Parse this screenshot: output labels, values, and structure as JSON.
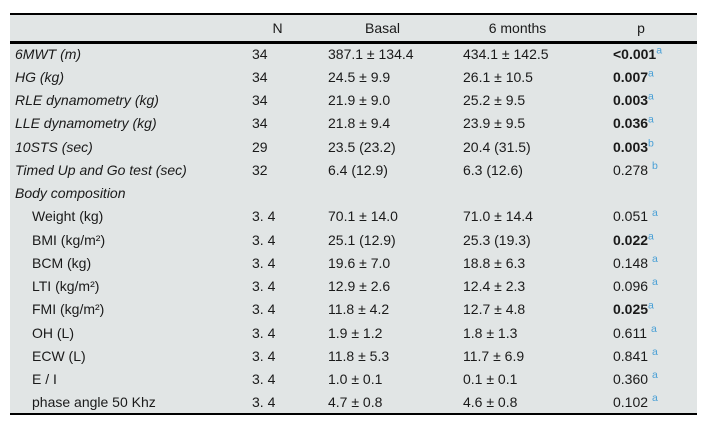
{
  "table": {
    "colors": {
      "background": "#e1e5e5",
      "superscript_blue": "#4aa0d6",
      "text": "#1a1a1a",
      "rule": "#000000"
    },
    "headers": {
      "parameter": "",
      "n": "N",
      "basal": "Basal",
      "six_months": "6 months",
      "p": "p"
    },
    "rows": [
      {
        "label": "6MWT (m)",
        "italic": true,
        "indent": false,
        "n": "34",
        "basal": "387.1 ± 134.4",
        "six_months": "434.1 ± 142.5",
        "p": "<0.001",
        "p_bold": true,
        "sup": "a",
        "sup_gap": false
      },
      {
        "label": "HG (kg)",
        "italic": true,
        "indent": false,
        "n": "34",
        "basal": "24.5 ± 9.9",
        "six_months": "26.1 ± 10.5",
        "p": "0.007",
        "p_bold": true,
        "sup": "a",
        "sup_gap": false
      },
      {
        "label": "RLE dynamometry (kg)",
        "italic": true,
        "indent": false,
        "n": "34",
        "basal": "21.9 ± 9.0",
        "six_months": "25.2 ± 9.5",
        "p": "0.003",
        "p_bold": true,
        "sup": "a",
        "sup_gap": false
      },
      {
        "label": "LLE dynamometry (kg)",
        "italic": true,
        "indent": false,
        "n": "34",
        "basal": "21.8 ± 9.4",
        "six_months": "23.9 ± 9.5",
        "p": "0.036",
        "p_bold": true,
        "sup": "a",
        "sup_gap": false
      },
      {
        "label": "10STS (sec)",
        "italic": true,
        "indent": false,
        "n": "29",
        "basal": "23.5 (23.2)",
        "six_months": "20.4 (31.5)",
        "p": "0.003",
        "p_bold": true,
        "sup": "b",
        "sup_gap": false
      },
      {
        "label": "Timed Up and Go test (sec)",
        "italic": true,
        "indent": false,
        "n": "32",
        "basal": "6.4 (12.9)",
        "six_months": "6.3 (12.6)",
        "p": "0.278",
        "p_bold": false,
        "sup": "b",
        "sup_gap": true
      },
      {
        "label": "Body composition",
        "italic": true,
        "indent": false,
        "n": "",
        "basal": "",
        "six_months": "",
        "p": "",
        "p_bold": false,
        "sup": "",
        "sup_gap": false
      },
      {
        "label": "Weight (kg)",
        "italic": false,
        "indent": true,
        "n": "3. 4",
        "basal": "70.1 ± 14.0",
        "six_months": "71.0 ± 14.4",
        "p": "0.051",
        "p_bold": false,
        "sup": "a",
        "sup_gap": true
      },
      {
        "label": "BMI (kg/m²)",
        "italic": false,
        "indent": true,
        "n": "3. 4",
        "basal": "25.1 (12.9)",
        "six_months": "25.3 (19.3)",
        "p": "0.022",
        "p_bold": true,
        "sup": "a",
        "sup_gap": false
      },
      {
        "label": "BCM (kg)",
        "italic": false,
        "indent": true,
        "n": "3. 4",
        "basal": "19.6 ± 7.0",
        "six_months": "18.8 ± 6.3",
        "p": "0.148",
        "p_bold": false,
        "sup": "a",
        "sup_gap": true
      },
      {
        "label": "LTI (kg/m²)",
        "italic": false,
        "indent": true,
        "n": "3. 4",
        "basal": "12.9 ± 2.6",
        "six_months": "12.4 ± 2.3",
        "p": "0.096",
        "p_bold": false,
        "sup": "a",
        "sup_gap": true
      },
      {
        "label": "FMI (kg/m²)",
        "italic": false,
        "indent": true,
        "n": "3. 4",
        "basal": "11.8 ± 4.2",
        "six_months": "12.7 ± 4.8",
        "p": "0.025",
        "p_bold": true,
        "sup": "a",
        "sup_gap": false
      },
      {
        "label": "OH (L)",
        "italic": false,
        "indent": true,
        "n": "3. 4",
        "basal": "1.9 ± 1.2",
        "six_months": "1.8 ± 1.3",
        "p": "0.611",
        "p_bold": false,
        "sup": "a",
        "sup_gap": true
      },
      {
        "label": "ECW (L)",
        "italic": false,
        "indent": true,
        "n": "3. 4",
        "basal": "11.8 ± 5.3",
        "six_months": "11.7 ± 6.9",
        "p": "0.841",
        "p_bold": false,
        "sup": "a",
        "sup_gap": true
      },
      {
        "label": "E / I",
        "italic": false,
        "indent": true,
        "n": "3. 4",
        "basal": "1.0 ± 0.1",
        "six_months": "0.1 ± 0.1",
        "p": "0.360",
        "p_bold": false,
        "sup": "a",
        "sup_gap": true
      },
      {
        "label": "phase angle 50 Khz",
        "italic": false,
        "indent": true,
        "n": "3. 4",
        "basal": "4.7 ± 0.8",
        "six_months": "4.6 ± 0.8",
        "p": "0.102",
        "p_bold": false,
        "sup": "a",
        "sup_gap": true
      }
    ]
  }
}
